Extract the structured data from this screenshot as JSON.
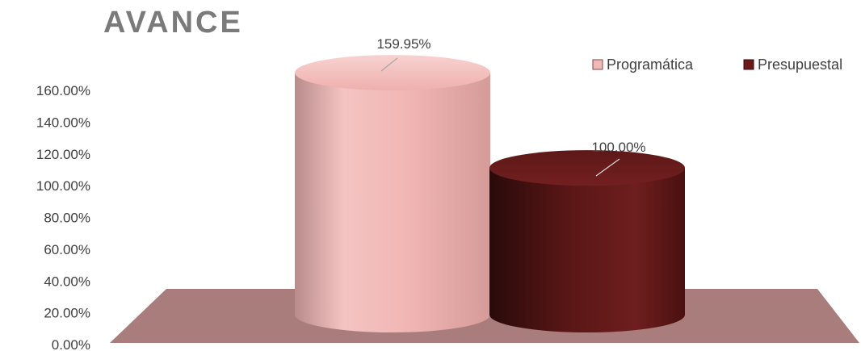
{
  "chart_data": {
    "type": "bar",
    "title": "AVANCE",
    "series": [
      {
        "name": "Programática",
        "value": 159.95,
        "label": "159.95%",
        "color": "#f2b8b8"
      },
      {
        "name": "Presupuestal",
        "value": 100.0,
        "label": "100.00%",
        "color": "#6b1a1a"
      }
    ],
    "ylim": [
      0,
      160
    ],
    "yticks": [
      "0.00%",
      "20.00%",
      "40.00%",
      "60.00%",
      "80.00%",
      "100.00%",
      "120.00%",
      "140.00%",
      "160.00%"
    ],
    "floor_color": "#a87d7b",
    "legend_position": "top-right",
    "grid": false
  }
}
